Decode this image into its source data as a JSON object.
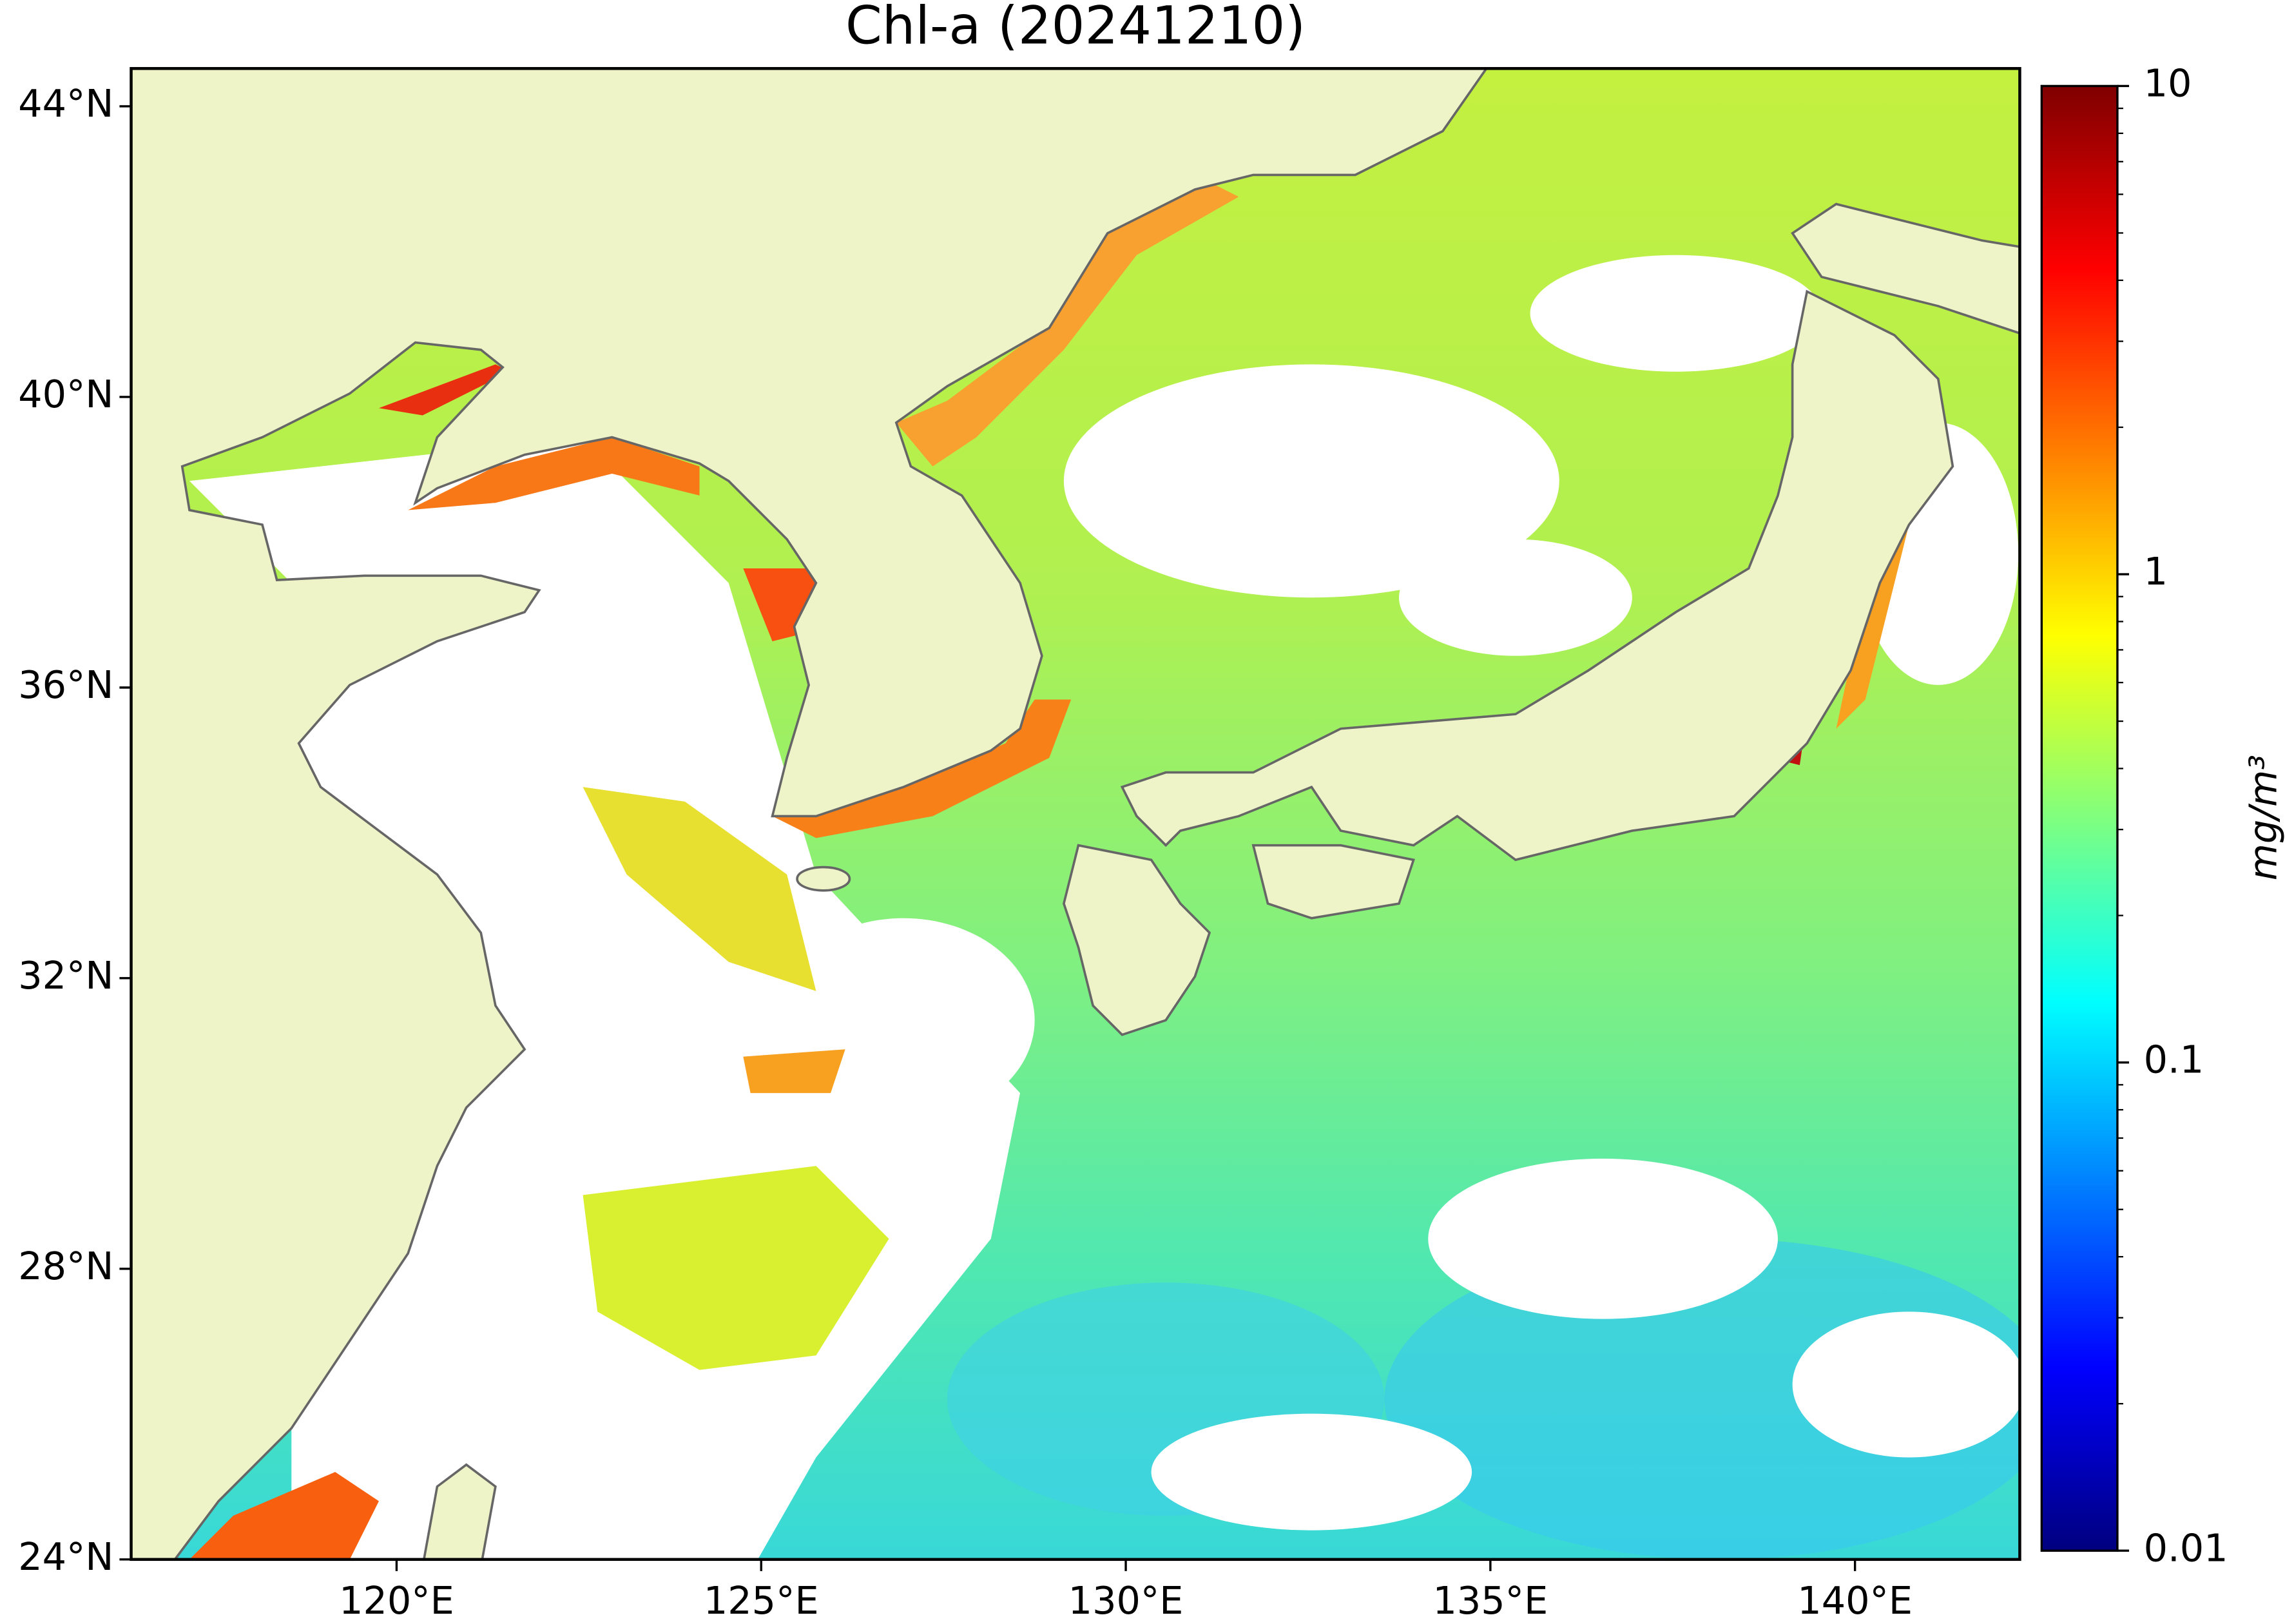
{
  "title": "Chl-a (20241210)",
  "map": {
    "xlim": [
      116.36,
      142.26
    ],
    "ylim": [
      24,
      44.52
    ],
    "xticks": [
      {
        "value": 120,
        "label": "120°E"
      },
      {
        "value": 125,
        "label": "125°E"
      },
      {
        "value": 130,
        "label": "130°E"
      },
      {
        "value": 135,
        "label": "135°E"
      },
      {
        "value": 140,
        "label": "140°E"
      }
    ],
    "yticks": [
      {
        "value": 24,
        "label": "24°N"
      },
      {
        "value": 28,
        "label": "28°N"
      },
      {
        "value": 32,
        "label": "32°N"
      },
      {
        "value": 36,
        "label": "36°N"
      },
      {
        "value": 40,
        "label": "40°N"
      },
      {
        "value": 44,
        "label": "44°N"
      }
    ]
  },
  "colorbar": {
    "colormap": "jet",
    "log": true,
    "lim": [
      0.01,
      10
    ],
    "ticks": [
      0.01,
      0.1,
      1,
      10
    ],
    "label": "mg/m³"
  }
}
